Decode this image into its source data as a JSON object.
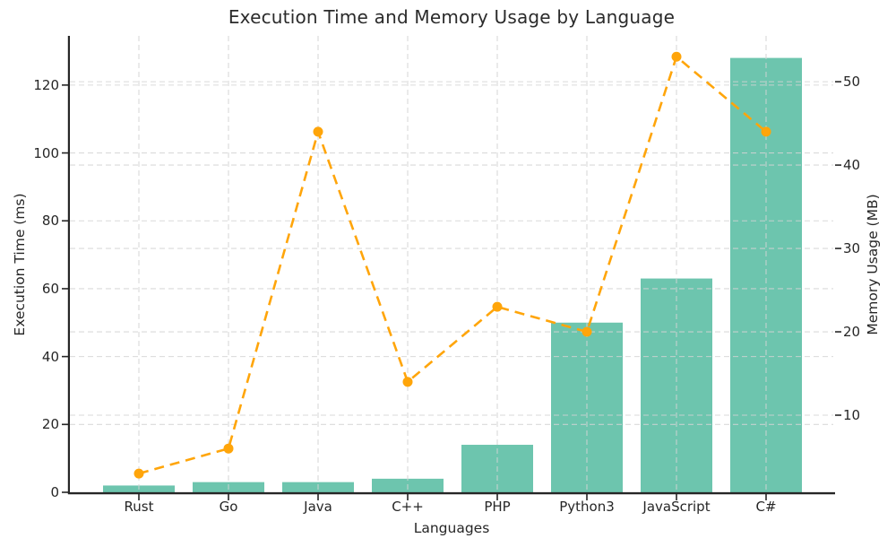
{
  "title": "Execution Time and Memory Usage by Language",
  "chart_data": {
    "type": "bar",
    "subtype": "combo-bar-line-dual-axis",
    "title": "Execution Time and Memory Usage by Language",
    "xlabel": "Languages",
    "categories": [
      "Rust",
      "Go",
      "Java",
      "C++",
      "PHP",
      "Python3",
      "JavaScript",
      "C#"
    ],
    "series": [
      {
        "name": "Execution Time",
        "type": "bar",
        "axis": "left",
        "color": "#6DC5AE",
        "values": [
          2,
          3,
          3,
          4,
          14,
          50,
          63,
          128
        ]
      },
      {
        "name": "Memory Usage",
        "type": "line",
        "axis": "right",
        "linestyle": "dashed",
        "marker": "circle",
        "color": "#FFA50A",
        "values": [
          3,
          6,
          44,
          14,
          23,
          20,
          53,
          44
        ]
      }
    ],
    "axes": {
      "left": {
        "label": "Execution Time (ms)",
        "ticks": [
          0,
          20,
          40,
          60,
          80,
          100,
          120
        ],
        "range": [
          0,
          134.5
        ]
      },
      "right": {
        "label": "Memory Usage (MB)",
        "ticks": [
          10,
          20,
          30,
          40,
          50
        ],
        "range": [
          0.75,
          55.5
        ]
      }
    },
    "grid": true,
    "legend": "none"
  },
  "colors": {
    "bar": "#6DC5AE",
    "line": "#FFA50A",
    "grid": "#D4D4D4",
    "spine": "#262626",
    "text": "#262626",
    "background": "#FFFFFF"
  }
}
